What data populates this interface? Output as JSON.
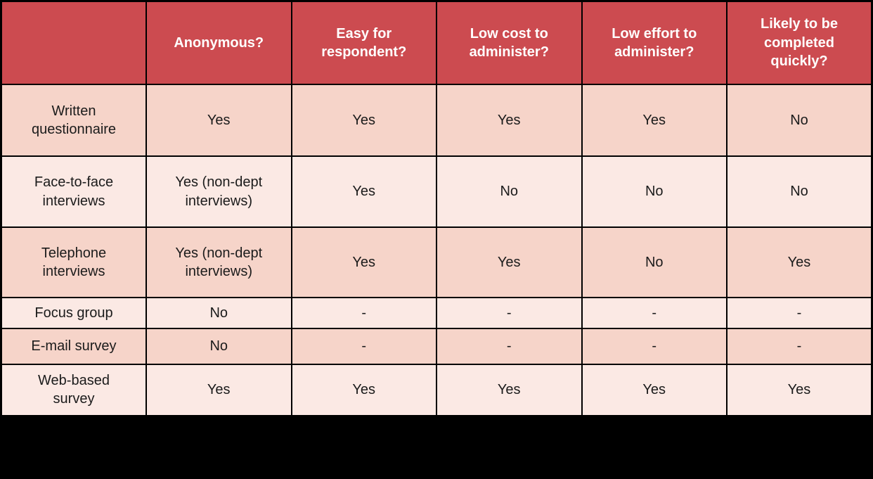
{
  "chart_data": {
    "type": "table",
    "columns": [
      "",
      "Anonymous?",
      "Easy for respondent?",
      "Low cost to administer?",
      "Low effort to administer?",
      "Likely to be completed quickly?"
    ],
    "rows": [
      {
        "label": "Written questionnaire",
        "values": [
          "Yes",
          "Yes",
          "Yes",
          "Yes",
          "No"
        ]
      },
      {
        "label": "Face-to-face interviews",
        "values": [
          "Yes (non-dept interviews)",
          "Yes",
          "No",
          "No",
          "No"
        ]
      },
      {
        "label": "Telephone interviews",
        "values": [
          "Yes (non-dept interviews)",
          "Yes",
          "Yes",
          "No",
          "Yes"
        ]
      },
      {
        "label": "Focus group",
        "values": [
          "No",
          "-",
          "-",
          "-",
          "-"
        ]
      },
      {
        "label": "E-mail survey",
        "values": [
          "No",
          "-",
          "-",
          "-",
          "-"
        ]
      },
      {
        "label": "Web-based survey",
        "values": [
          "Yes",
          "Yes",
          "Yes",
          "Yes",
          "Yes"
        ]
      }
    ],
    "colors": {
      "header_bg": "#cc4b50",
      "header_text": "#ffffff",
      "row_dark_bg": "#f6d4c9",
      "row_light_bg": "#fbe9e4",
      "cell_text": "#1b1b1b",
      "border": "#000000",
      "canvas_bg": "#000000"
    },
    "layout": {
      "grid": "on",
      "row_shading": "alternating dark/light starting dark",
      "bottom_band": "solid black"
    }
  }
}
